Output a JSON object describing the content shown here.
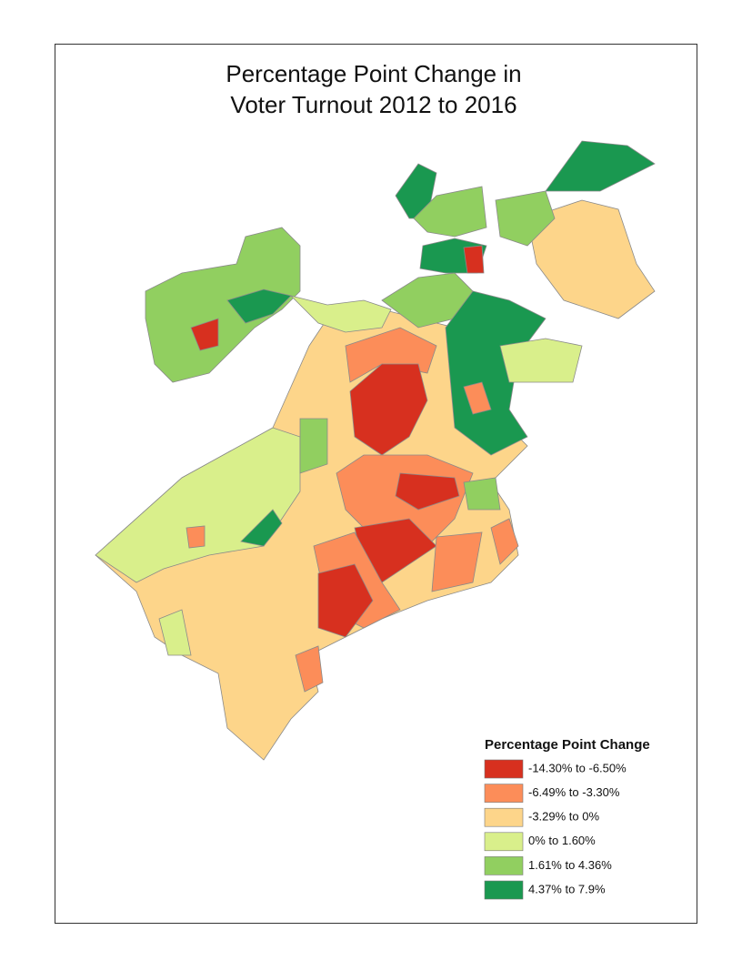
{
  "title": [
    "Percentage Point Change in",
    "Voter Turnout 2012 to 2016"
  ],
  "legend": {
    "title": "Percentage Point Change",
    "items": [
      {
        "label": "-14.30% to -6.50%",
        "color": "#d7301f"
      },
      {
        "label": "-6.49% to -3.30%",
        "color": "#fc8d59"
      },
      {
        "label": "-3.29% to 0%",
        "color": "#fdd58a"
      },
      {
        "label": "0% to 1.60%",
        "color": "#d9ef8b"
      },
      {
        "label": "1.61% to 4.36%",
        "color": "#91cf60"
      },
      {
        "label": "4.37% to 7.9%",
        "color": "#1a9850"
      }
    ]
  }
}
